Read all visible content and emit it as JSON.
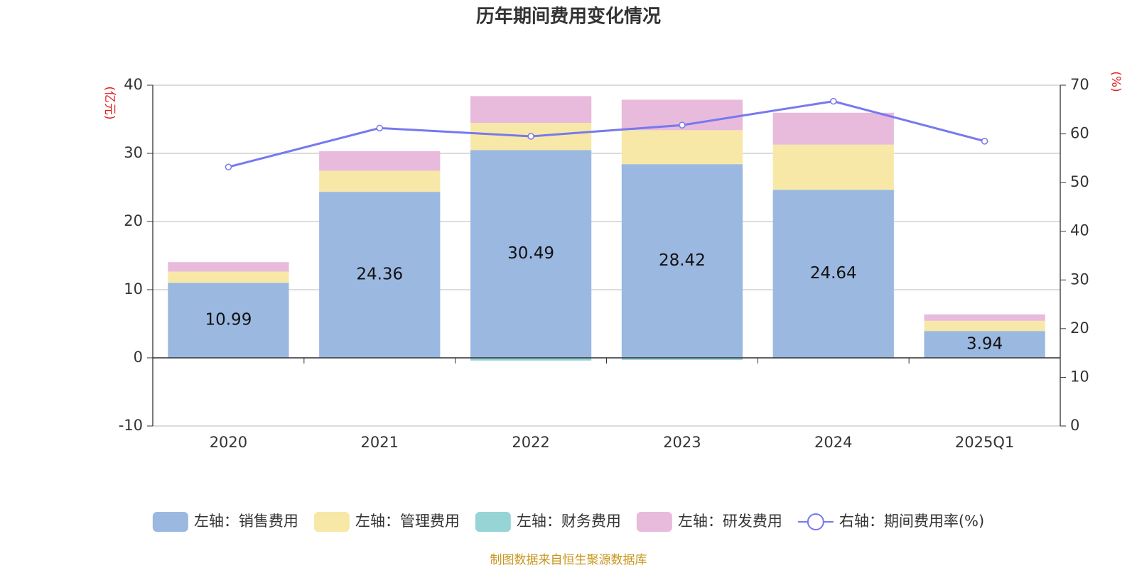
{
  "chart_data": {
    "type": "bar_line",
    "title": "历年期间费用变化情况",
    "y_label": "(亿元)",
    "y2_label": "(%)",
    "source": "制图数据来自恒生聚源数据库",
    "categories": [
      "2020",
      "2021",
      "2022",
      "2023",
      "2024",
      "2025Q1"
    ],
    "ylim": [
      -10,
      40
    ],
    "yticks": [
      -10,
      0,
      10,
      20,
      30,
      40
    ],
    "y2lim": [
      0,
      70
    ],
    "y2ticks": [
      0,
      10,
      20,
      30,
      40,
      50,
      60,
      70
    ],
    "grid": true,
    "legend": "bottom",
    "series": [
      {
        "name": "左轴：销售费用",
        "color": "#9bb8e1",
        "type": "bar",
        "show_labels": true,
        "values": [
          10.99,
          24.36,
          30.49,
          28.42,
          24.64,
          3.94
        ]
      },
      {
        "name": "左轴：管理费用",
        "color": "#f8e8a8",
        "type": "bar",
        "values": [
          1.67,
          3.09,
          3.98,
          4.98,
          6.64,
          1.49
        ]
      },
      {
        "name": "左轴：财务费用",
        "color": "#96d4d6",
        "type": "bar",
        "values": [
          -0.05,
          -0.05,
          -0.4,
          -0.3,
          -0.1,
          -0.05
        ]
      },
      {
        "name": "左轴：研发费用",
        "color": "#e8badc",
        "type": "bar",
        "values": [
          1.38,
          2.87,
          3.93,
          4.47,
          4.68,
          0.95
        ]
      },
      {
        "name": "右轴：期间费用率(%)",
        "color": "#7679ee",
        "type": "line",
        "axis": "y2",
        "values": [
          53.2,
          61.2,
          59.5,
          61.8,
          66.7,
          58.5
        ]
      }
    ]
  }
}
